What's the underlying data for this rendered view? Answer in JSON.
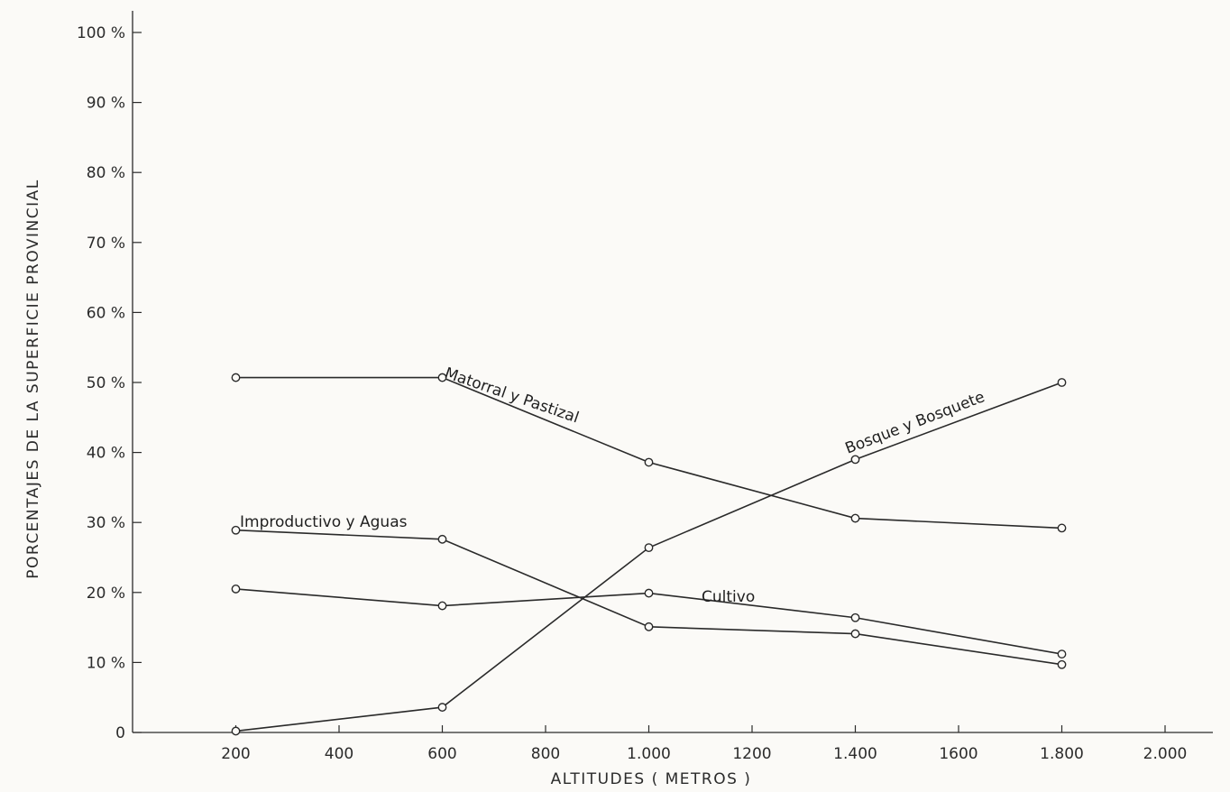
{
  "chart_data": {
    "type": "line",
    "xlabel": "ALTITUDES ( METROS )",
    "ylabel": "PORCENTAJES DE LA SUPERFICIE PROVINCIAL",
    "xlim": [
      0,
      2000
    ],
    "ylim": [
      0,
      100
    ],
    "x_ticks": [
      {
        "value": 200,
        "label": "200"
      },
      {
        "value": 400,
        "label": "400"
      },
      {
        "value": 600,
        "label": "600"
      },
      {
        "value": 800,
        "label": "800"
      },
      {
        "value": 1000,
        "label": "1.000"
      },
      {
        "value": 1200,
        "label": "1200"
      },
      {
        "value": 1400,
        "label": "1.400"
      },
      {
        "value": 1600,
        "label": "1600"
      },
      {
        "value": 1800,
        "label": "1.800"
      },
      {
        "value": 2000,
        "label": "2.000"
      }
    ],
    "y_ticks": [
      {
        "value": 0,
        "label": "0"
      },
      {
        "value": 10,
        "label": "10 %"
      },
      {
        "value": 20,
        "label": "20 %"
      },
      {
        "value": 30,
        "label": "30 %"
      },
      {
        "value": 40,
        "label": "40 %"
      },
      {
        "value": 50,
        "label": "50 %"
      },
      {
        "value": 60,
        "label": "60 %"
      },
      {
        "value": 70,
        "label": "70 %"
      },
      {
        "value": 80,
        "label": "80 %"
      },
      {
        "value": 90,
        "label": "90 %"
      },
      {
        "value": 100,
        "label": "100 %"
      }
    ],
    "grid": false,
    "x": [
      200,
      600,
      1000,
      1400,
      1800
    ],
    "series": [
      {
        "name": "Matorral y Pastizal",
        "values": [
          50.7,
          50.7,
          38.6,
          30.6,
          29.2
        ]
      },
      {
        "name": "Bosque y Bosquete",
        "values": [
          0.2,
          3.6,
          26.4,
          39.0,
          50.0
        ]
      },
      {
        "name": "Improductivo y Aguas",
        "values": [
          28.9,
          27.6,
          15.1,
          14.1,
          9.7
        ]
      },
      {
        "name": "Cultivo",
        "values": [
          20.5,
          18.1,
          19.9,
          16.4,
          11.2
        ]
      }
    ]
  }
}
